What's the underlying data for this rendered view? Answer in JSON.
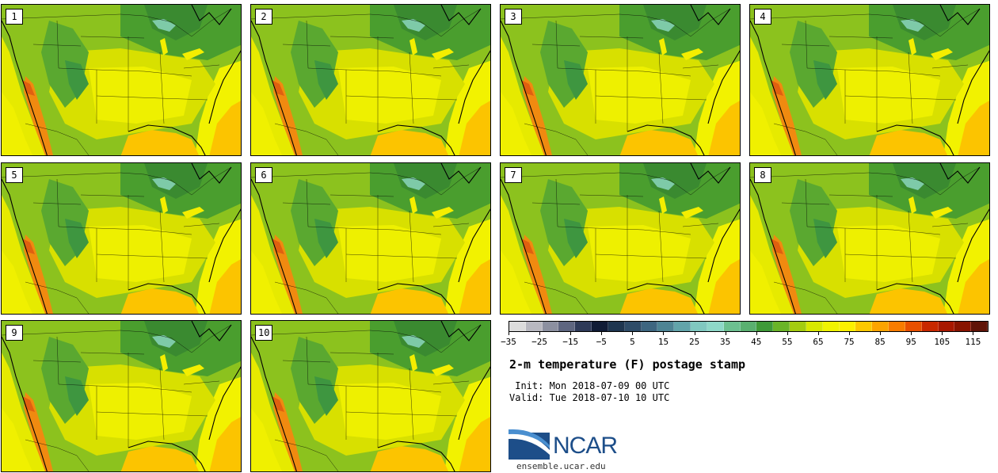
{
  "panels": [
    {
      "label": "1"
    },
    {
      "label": "2"
    },
    {
      "label": "3"
    },
    {
      "label": "4"
    },
    {
      "label": "5"
    },
    {
      "label": "6"
    },
    {
      "label": "7"
    },
    {
      "label": "8"
    },
    {
      "label": "9"
    },
    {
      "label": "10"
    }
  ],
  "colorbar": {
    "colors": [
      "#dcdcdc",
      "#b8b8c0",
      "#8c90a0",
      "#5e6680",
      "#2e3a58",
      "#101c36",
      "#1e3650",
      "#2e4c68",
      "#3e6680",
      "#4e8494",
      "#62a4aa",
      "#80c8c0",
      "#8ed8c8",
      "#6cc090",
      "#5ab070",
      "#3f9a38",
      "#6ab428",
      "#a4cc10",
      "#d8e800",
      "#f0f400",
      "#fcf000",
      "#fcc800",
      "#fca400",
      "#f87c00",
      "#e85000",
      "#c82800",
      "#a81800",
      "#881400",
      "#601408"
    ],
    "min": -35,
    "max": 120,
    "tick_values": [
      -35,
      -25,
      -15,
      -5,
      5,
      15,
      25,
      35,
      45,
      55,
      65,
      75,
      85,
      95,
      105,
      115
    ],
    "tick_labels": [
      "−35",
      "−25",
      "−15",
      "−5",
      "5",
      "15",
      "25",
      "35",
      "45",
      "55",
      "65",
      "75",
      "85",
      "95",
      "105",
      "115"
    ]
  },
  "title": "2-m temperature (F) postage stamp",
  "init_text": " Init: Mon 2018-07-09 00 UTC",
  "valid_text": "Valid: Tue 2018-07-10 10 UTC",
  "logo_text": "NCAR",
  "site_text": "ensemble.ucar.edu",
  "accent_colors": {
    "logo_blue": "#1d4e89",
    "logo_light": "#4a8fd0"
  }
}
